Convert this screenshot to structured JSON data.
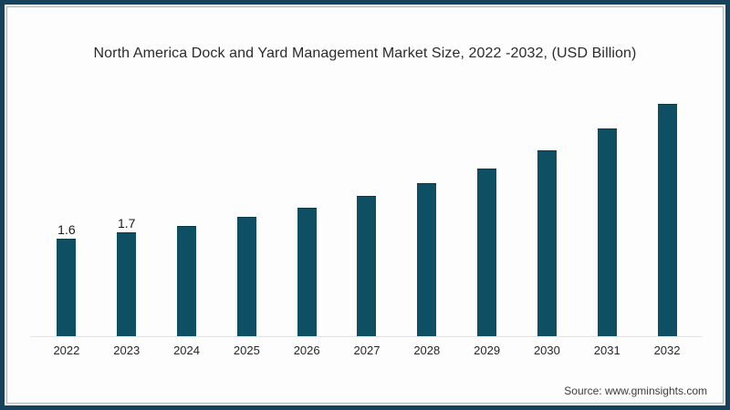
{
  "card": {
    "background": "#fdfdfd",
    "frame_color": "#16425c",
    "inner_line_color": "#5d8299"
  },
  "chart_data": {
    "type": "bar",
    "title": "North America Dock and Yard Management Market Size, 2022 -2032, (USD Billion)",
    "categories": [
      "2022",
      "2023",
      "2024",
      "2025",
      "2026",
      "2027",
      "2028",
      "2029",
      "2030",
      "2031",
      "2032"
    ],
    "values": [
      1.6,
      1.7,
      1.8,
      1.95,
      2.1,
      2.3,
      2.5,
      2.75,
      3.05,
      3.4,
      3.8
    ],
    "data_labels": [
      "1.6",
      "1.7",
      "",
      "",
      "",
      "",
      "",
      "",
      "",
      "",
      ""
    ],
    "bar_color": "#0f4f63",
    "axis_line_color": "#e3e3e3",
    "title_color": "#2b2b2b",
    "label_color": "#1a1a1a",
    "xlabel": "",
    "ylabel": "",
    "ylim": [
      0,
      4
    ],
    "grid": false,
    "legend": false
  },
  "source": {
    "label": "Source: www.gminsights.com"
  }
}
